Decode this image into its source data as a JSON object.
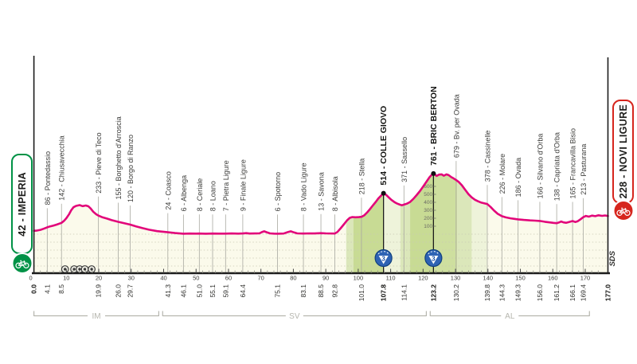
{
  "stage": {
    "start_label": "42 - IMPERIA",
    "finish_label": "228 - NOVI LIGURE",
    "credit": "SDS"
  },
  "colors": {
    "pink": "#e2067a",
    "area_fill": "#fbfaeb",
    "band_light": "#dbe7ba",
    "band_medium": "#c8db94",
    "band_medium2": "#cedf9f",
    "band_pale": "#eef3da",
    "axis": "#1c1c1c",
    "marker_line": "#a8a8a0",
    "label_text": "#3c3c3a",
    "bold_text": "#141412",
    "grid_dots": "#c9c9b4",
    "province": "#b6b6ae",
    "start_green": "#009246",
    "finish_red": "#d6251d",
    "gpm_blue": "#2e63b4",
    "gpm_blue_dark": "#10407e",
    "gpm_digit": "#1a4fa3"
  },
  "chart_data": {
    "type": "area",
    "title": "Stage profile Imperia - Novi Ligure",
    "x_unit": "km",
    "y_unit": "m",
    "x_range": [
      0,
      177
    ],
    "axis_ticks_km": [
      0,
      10,
      20,
      30,
      40,
      50,
      60,
      70,
      80,
      90,
      100,
      110,
      120,
      130,
      140,
      150,
      160,
      170
    ],
    "towns": [
      {
        "km": 0.0,
        "km_label": "0.0",
        "bold": true
      },
      {
        "km": 4.1,
        "km_label": "4.1",
        "elev": 86,
        "name": "Pontedassio"
      },
      {
        "km": 8.5,
        "km_label": "8.5",
        "elev": 142,
        "name": "Chiusavecchia"
      },
      {
        "km": 19.9,
        "km_label": "19.9",
        "elev": 233,
        "name": "Pieve di Teco"
      },
      {
        "km": 26.0,
        "km_label": "26.0",
        "elev": 155,
        "name": "Borghetto d'Arroscia"
      },
      {
        "km": 29.7,
        "km_label": "29.7",
        "elev": 120,
        "name": "Borgo di Ranzo"
      },
      {
        "km": 41.3,
        "km_label": "41.3",
        "elev": 24,
        "name": "Coasco"
      },
      {
        "km": 46.1,
        "km_label": "46.1",
        "elev": 6,
        "name": "Albenga"
      },
      {
        "km": 51.0,
        "km_label": "51.0",
        "elev": 8,
        "name": "Ceriale"
      },
      {
        "km": 55.1,
        "km_label": "55.1",
        "elev": 8,
        "name": "Loano"
      },
      {
        "km": 59.1,
        "km_label": "59.1",
        "elev": 7,
        "name": "Pietra Ligure"
      },
      {
        "km": 64.4,
        "km_label": "64.4",
        "elev": 9,
        "name": "Finale Ligure"
      },
      {
        "km": 75.1,
        "km_label": "75.1",
        "elev": 6,
        "name": "Spotorno"
      },
      {
        "km": 83.1,
        "km_label": "83.1",
        "elev": 8,
        "name": "Vado Ligure"
      },
      {
        "km": 88.5,
        "km_label": "88.5",
        "elev": 13,
        "name": "Savona"
      },
      {
        "km": 92.8,
        "km_label": "92.8",
        "elev": 8,
        "name": "Albisola"
      },
      {
        "km": 101.0,
        "km_label": "101.0",
        "elev": 218,
        "name": "Stella"
      },
      {
        "km": 107.8,
        "km_label": "107.8",
        "elev": 514,
        "name": "COLLE GIOVO",
        "gpm": 3,
        "bold": true
      },
      {
        "km": 114.1,
        "km_label": "114.1",
        "elev": 371,
        "name": "Sassello"
      },
      {
        "km": 123.2,
        "km_label": "123.2",
        "elev": 761,
        "name": "BRIC BERTON",
        "gpm": 3,
        "bold": true
      },
      {
        "km": 130.2,
        "km_label": "130.2",
        "elev": 679,
        "name": "Bv. per Ovada"
      },
      {
        "km": 139.8,
        "km_label": "139.8",
        "elev": 378,
        "name": "Cassinelle"
      },
      {
        "km": 144.3,
        "km_label": "144.3",
        "elev": 226,
        "name": "Molare"
      },
      {
        "km": 149.3,
        "km_label": "149.3",
        "elev": 186,
        "name": "Ovada"
      },
      {
        "km": 156.0,
        "km_label": "156.0",
        "elev": 166,
        "name": "Silvano d'Orba"
      },
      {
        "km": 161.2,
        "km_label": "161.2",
        "elev": 138,
        "name": "Capriata d'Orba"
      },
      {
        "km": 166.1,
        "km_label": "166.1",
        "elev": 165,
        "name": "Francavilla Bisio"
      },
      {
        "km": 169.4,
        "km_label": "169.4",
        "elev": 213,
        "name": "Pasturana"
      },
      {
        "km": 177.0,
        "km_label": "177.0",
        "bold": true
      }
    ],
    "profile": [
      [
        0,
        42
      ],
      [
        1,
        46
      ],
      [
        2,
        54
      ],
      [
        3,
        68
      ],
      [
        4.1,
        86
      ],
      [
        5,
        98
      ],
      [
        6,
        108
      ],
      [
        7,
        120
      ],
      [
        8.5,
        142
      ],
      [
        9.3,
        168
      ],
      [
        10,
        200
      ],
      [
        10.8,
        248
      ],
      [
        11.5,
        300
      ],
      [
        12.2,
        338
      ],
      [
        13,
        355
      ],
      [
        14.1,
        365
      ],
      [
        15,
        352
      ],
      [
        16,
        360
      ],
      [
        16.8,
        350
      ],
      [
        17.5,
        322
      ],
      [
        18.3,
        282
      ],
      [
        19.2,
        250
      ],
      [
        19.9,
        233
      ],
      [
        21,
        214
      ],
      [
        22.5,
        196
      ],
      [
        24,
        176
      ],
      [
        26,
        155
      ],
      [
        28,
        136
      ],
      [
        29.7,
        120
      ],
      [
        31.5,
        98
      ],
      [
        33.5,
        76
      ],
      [
        35.5,
        56
      ],
      [
        38,
        38
      ],
      [
        41.3,
        24
      ],
      [
        43.5,
        14
      ],
      [
        46.1,
        6
      ],
      [
        48,
        8
      ],
      [
        50,
        7
      ],
      [
        51,
        8
      ],
      [
        53,
        6
      ],
      [
        55.1,
        8
      ],
      [
        57,
        7
      ],
      [
        59.1,
        7
      ],
      [
        61,
        9
      ],
      [
        63,
        7
      ],
      [
        64.4,
        9
      ],
      [
        65.5,
        13
      ],
      [
        66.5,
        8
      ],
      [
        68,
        9
      ],
      [
        69.5,
        10
      ],
      [
        70.3,
        26
      ],
      [
        71,
        36
      ],
      [
        71.8,
        24
      ],
      [
        72.8,
        10
      ],
      [
        74,
        7
      ],
      [
        75.1,
        6
      ],
      [
        77,
        8
      ],
      [
        78.3,
        26
      ],
      [
        79.2,
        36
      ],
      [
        80.2,
        22
      ],
      [
        81.2,
        10
      ],
      [
        83.1,
        8
      ],
      [
        85,
        10
      ],
      [
        86.5,
        9
      ],
      [
        88.5,
        13
      ],
      [
        90,
        10
      ],
      [
        92.8,
        8
      ],
      [
        93.6,
        28
      ],
      [
        94.6,
        75
      ],
      [
        95.6,
        125
      ],
      [
        96.6,
        175
      ],
      [
        97.4,
        205
      ],
      [
        98.2,
        215
      ],
      [
        99.2,
        212
      ],
      [
        100.2,
        214
      ],
      [
        101,
        218
      ],
      [
        101.9,
        238
      ],
      [
        102.8,
        275
      ],
      [
        103.7,
        318
      ],
      [
        104.6,
        365
      ],
      [
        105.4,
        405
      ],
      [
        106.2,
        448
      ],
      [
        107,
        482
      ],
      [
        107.8,
        514
      ],
      [
        108.6,
        494
      ],
      [
        109.4,
        462
      ],
      [
        110.2,
        432
      ],
      [
        111.2,
        402
      ],
      [
        112,
        384
      ],
      [
        112.9,
        370
      ],
      [
        113.5,
        363
      ],
      [
        114.1,
        371
      ],
      [
        115,
        383
      ],
      [
        116,
        404
      ],
      [
        117,
        443
      ],
      [
        118,
        490
      ],
      [
        119,
        540
      ],
      [
        120,
        596
      ],
      [
        121,
        656
      ],
      [
        122,
        716
      ],
      [
        122.7,
        746
      ],
      [
        123.2,
        761
      ],
      [
        123.7,
        747
      ],
      [
        124.2,
        731
      ],
      [
        124.9,
        748
      ],
      [
        125.7,
        751
      ],
      [
        126.4,
        734
      ],
      [
        127.2,
        751
      ],
      [
        127.9,
        741
      ],
      [
        128.7,
        716
      ],
      [
        129.4,
        701
      ],
      [
        130.2,
        679
      ],
      [
        131,
        656
      ],
      [
        132,
        612
      ],
      [
        133,
        556
      ],
      [
        134,
        502
      ],
      [
        135,
        462
      ],
      [
        136,
        432
      ],
      [
        137,
        412
      ],
      [
        138,
        396
      ],
      [
        139,
        386
      ],
      [
        139.8,
        378
      ],
      [
        140.8,
        342
      ],
      [
        141.9,
        296
      ],
      [
        143,
        256
      ],
      [
        144.3,
        226
      ],
      [
        145.5,
        211
      ],
      [
        147,
        199
      ],
      [
        148.2,
        192
      ],
      [
        149.3,
        186
      ],
      [
        151,
        179
      ],
      [
        153,
        173
      ],
      [
        154.5,
        170
      ],
      [
        156,
        166
      ],
      [
        157.5,
        156
      ],
      [
        159,
        148
      ],
      [
        160.2,
        142
      ],
      [
        161.2,
        138
      ],
      [
        161.9,
        147
      ],
      [
        162.6,
        159
      ],
      [
        163.3,
        148
      ],
      [
        164.1,
        143
      ],
      [
        165,
        153
      ],
      [
        166.1,
        165
      ],
      [
        166.9,
        153
      ],
      [
        167.7,
        163
      ],
      [
        168.5,
        186
      ],
      [
        169.4,
        213
      ],
      [
        170.2,
        229
      ],
      [
        171.1,
        220
      ],
      [
        172.1,
        233
      ],
      [
        173.1,
        226
      ],
      [
        174.1,
        237
      ],
      [
        175.2,
        230
      ],
      [
        176.1,
        235
      ],
      [
        177,
        228
      ]
    ],
    "gradient_bands": [
      {
        "from": 96.3,
        "to": 98.5,
        "shade": "light"
      },
      {
        "from": 98.5,
        "to": 107.8,
        "shade": "medium"
      },
      {
        "from": 107.8,
        "to": 113.0,
        "shade": "pale"
      },
      {
        "from": 113.0,
        "to": 116.0,
        "shade": "light"
      },
      {
        "from": 116.0,
        "to": 123.2,
        "shade": "medium"
      },
      {
        "from": 123.2,
        "to": 130.5,
        "shade": "medium2"
      },
      {
        "from": 130.5,
        "to": 135.0,
        "shade": "light"
      },
      {
        "from": 135.0,
        "to": 139.8,
        "shade": "pale"
      }
    ],
    "summit_scale": {
      "at_km": 123.2,
      "values": [
        600,
        500,
        400,
        300,
        200,
        100
      ]
    },
    "tunnels_km": [
      9.6,
      12.4,
      14.1,
      15.7,
      17.8
    ],
    "provinces": [
      {
        "label": "IM",
        "from_km": 0,
        "to_km": 38.5
      },
      {
        "label": "SV",
        "from_km": 39.7,
        "to_km": 121.0
      },
      {
        "label": "AL",
        "from_km": 122.2,
        "to_km": 171.3
      }
    ],
    "legend": "blue circled 3 = category 3 climb (GPM)"
  }
}
